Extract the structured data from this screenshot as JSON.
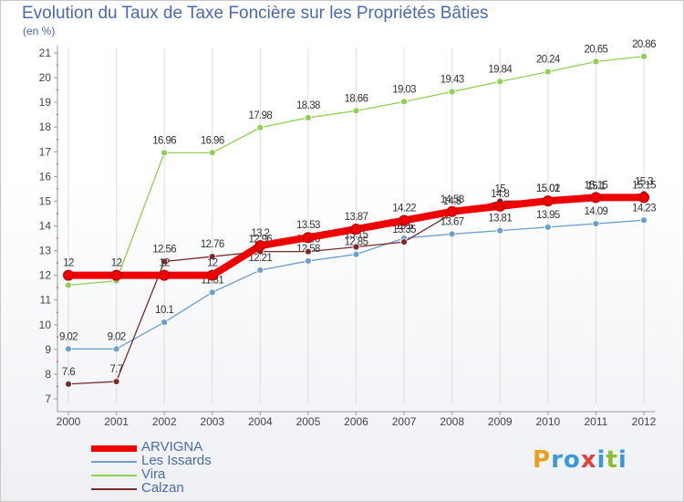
{
  "header": {
    "title": "Evolution du Taux de Taxe Foncière sur les Propriétés Bâties",
    "unit": "(en %)"
  },
  "logo": {
    "text": "Proxiti",
    "colors": [
      "#e8a020",
      "#3a9ad8",
      "#3a9ad8",
      "#e04040",
      "#3a9ad8",
      "#8ac030",
      "#3a9ad8"
    ]
  },
  "chart_data": {
    "type": "line",
    "title": "Evolution du Taux de Taxe Foncière sur les Propriétés Bâties",
    "ylabel": "(en %)",
    "xlabel": "",
    "x": [
      "2000",
      "2001",
      "2002",
      "2003",
      "2004",
      "2005",
      "2006",
      "2007",
      "2008",
      "2009",
      "2010",
      "2011",
      "2012"
    ],
    "ylim": [
      7,
      21
    ],
    "yticks": [
      7,
      8,
      9,
      10,
      11,
      12,
      13,
      14,
      15,
      16,
      17,
      18,
      19,
      20,
      21
    ],
    "grid": "vertical",
    "legend": "bottom-left",
    "series": [
      {
        "name": "Vira",
        "color": "#8fd053",
        "values": [
          11.6,
          11.78,
          16.96,
          16.96,
          17.98,
          18.38,
          18.66,
          19.03,
          19.43,
          19.84,
          20.24,
          20.65,
          20.86
        ],
        "labels": [
          "",
          "",
          "16.96",
          "16.96",
          "17.98",
          "18.38",
          "18.66",
          "19.03",
          "19.43",
          "19.84",
          "20.24",
          "20.65",
          "20.86"
        ]
      },
      {
        "name": "Les Issards",
        "color": "#6a9fd0",
        "values": [
          9.02,
          9.02,
          10.1,
          11.31,
          12.21,
          12.58,
          12.85,
          13.5,
          13.67,
          13.81,
          13.95,
          14.09,
          14.23
        ],
        "labels": [
          "9.02",
          "9.02",
          "10.1",
          "11.31",
          "12.21",
          "12.58",
          "12.85",
          "13.5",
          "13.67",
          "13.81",
          "13.95",
          "14.09",
          "14.23"
        ]
      },
      {
        "name": "Calzan",
        "color": "#7a2a2a",
        "values": [
          7.6,
          7.7,
          12.56,
          12.76,
          12.96,
          12.96,
          13.15,
          13.35,
          14.5,
          15,
          15.02,
          15.1,
          15.3
        ],
        "labels": [
          "7.6",
          "7.7",
          "12.56",
          "12.76",
          "12.96",
          "12.96",
          "13.15",
          "13.35",
          "14.5",
          "15",
          "15.02",
          "15.1",
          "15.3"
        ]
      },
      {
        "name": "ARVIGNA",
        "color": "#ee0000",
        "values": [
          12,
          12,
          12,
          12,
          13.2,
          13.53,
          13.87,
          14.22,
          14.58,
          14.8,
          15.01,
          15.15,
          15.15
        ],
        "labels": [
          "12",
          "12",
          "12",
          "12",
          "13.2",
          "13.53",
          "13.87",
          "14.22",
          "14.58",
          "14.8",
          "15.01",
          "15.15",
          "15.15"
        ]
      }
    ]
  },
  "legend": {
    "items": [
      {
        "name": "ARVIGNA",
        "color": "#ee0000",
        "thickness": 7
      },
      {
        "name": "Les Issards",
        "color": "#6a9fd0",
        "thickness": 2
      },
      {
        "name": "Vira",
        "color": "#8fd053",
        "thickness": 2
      },
      {
        "name": "Calzan",
        "color": "#7a2a2a",
        "thickness": 2
      }
    ]
  }
}
